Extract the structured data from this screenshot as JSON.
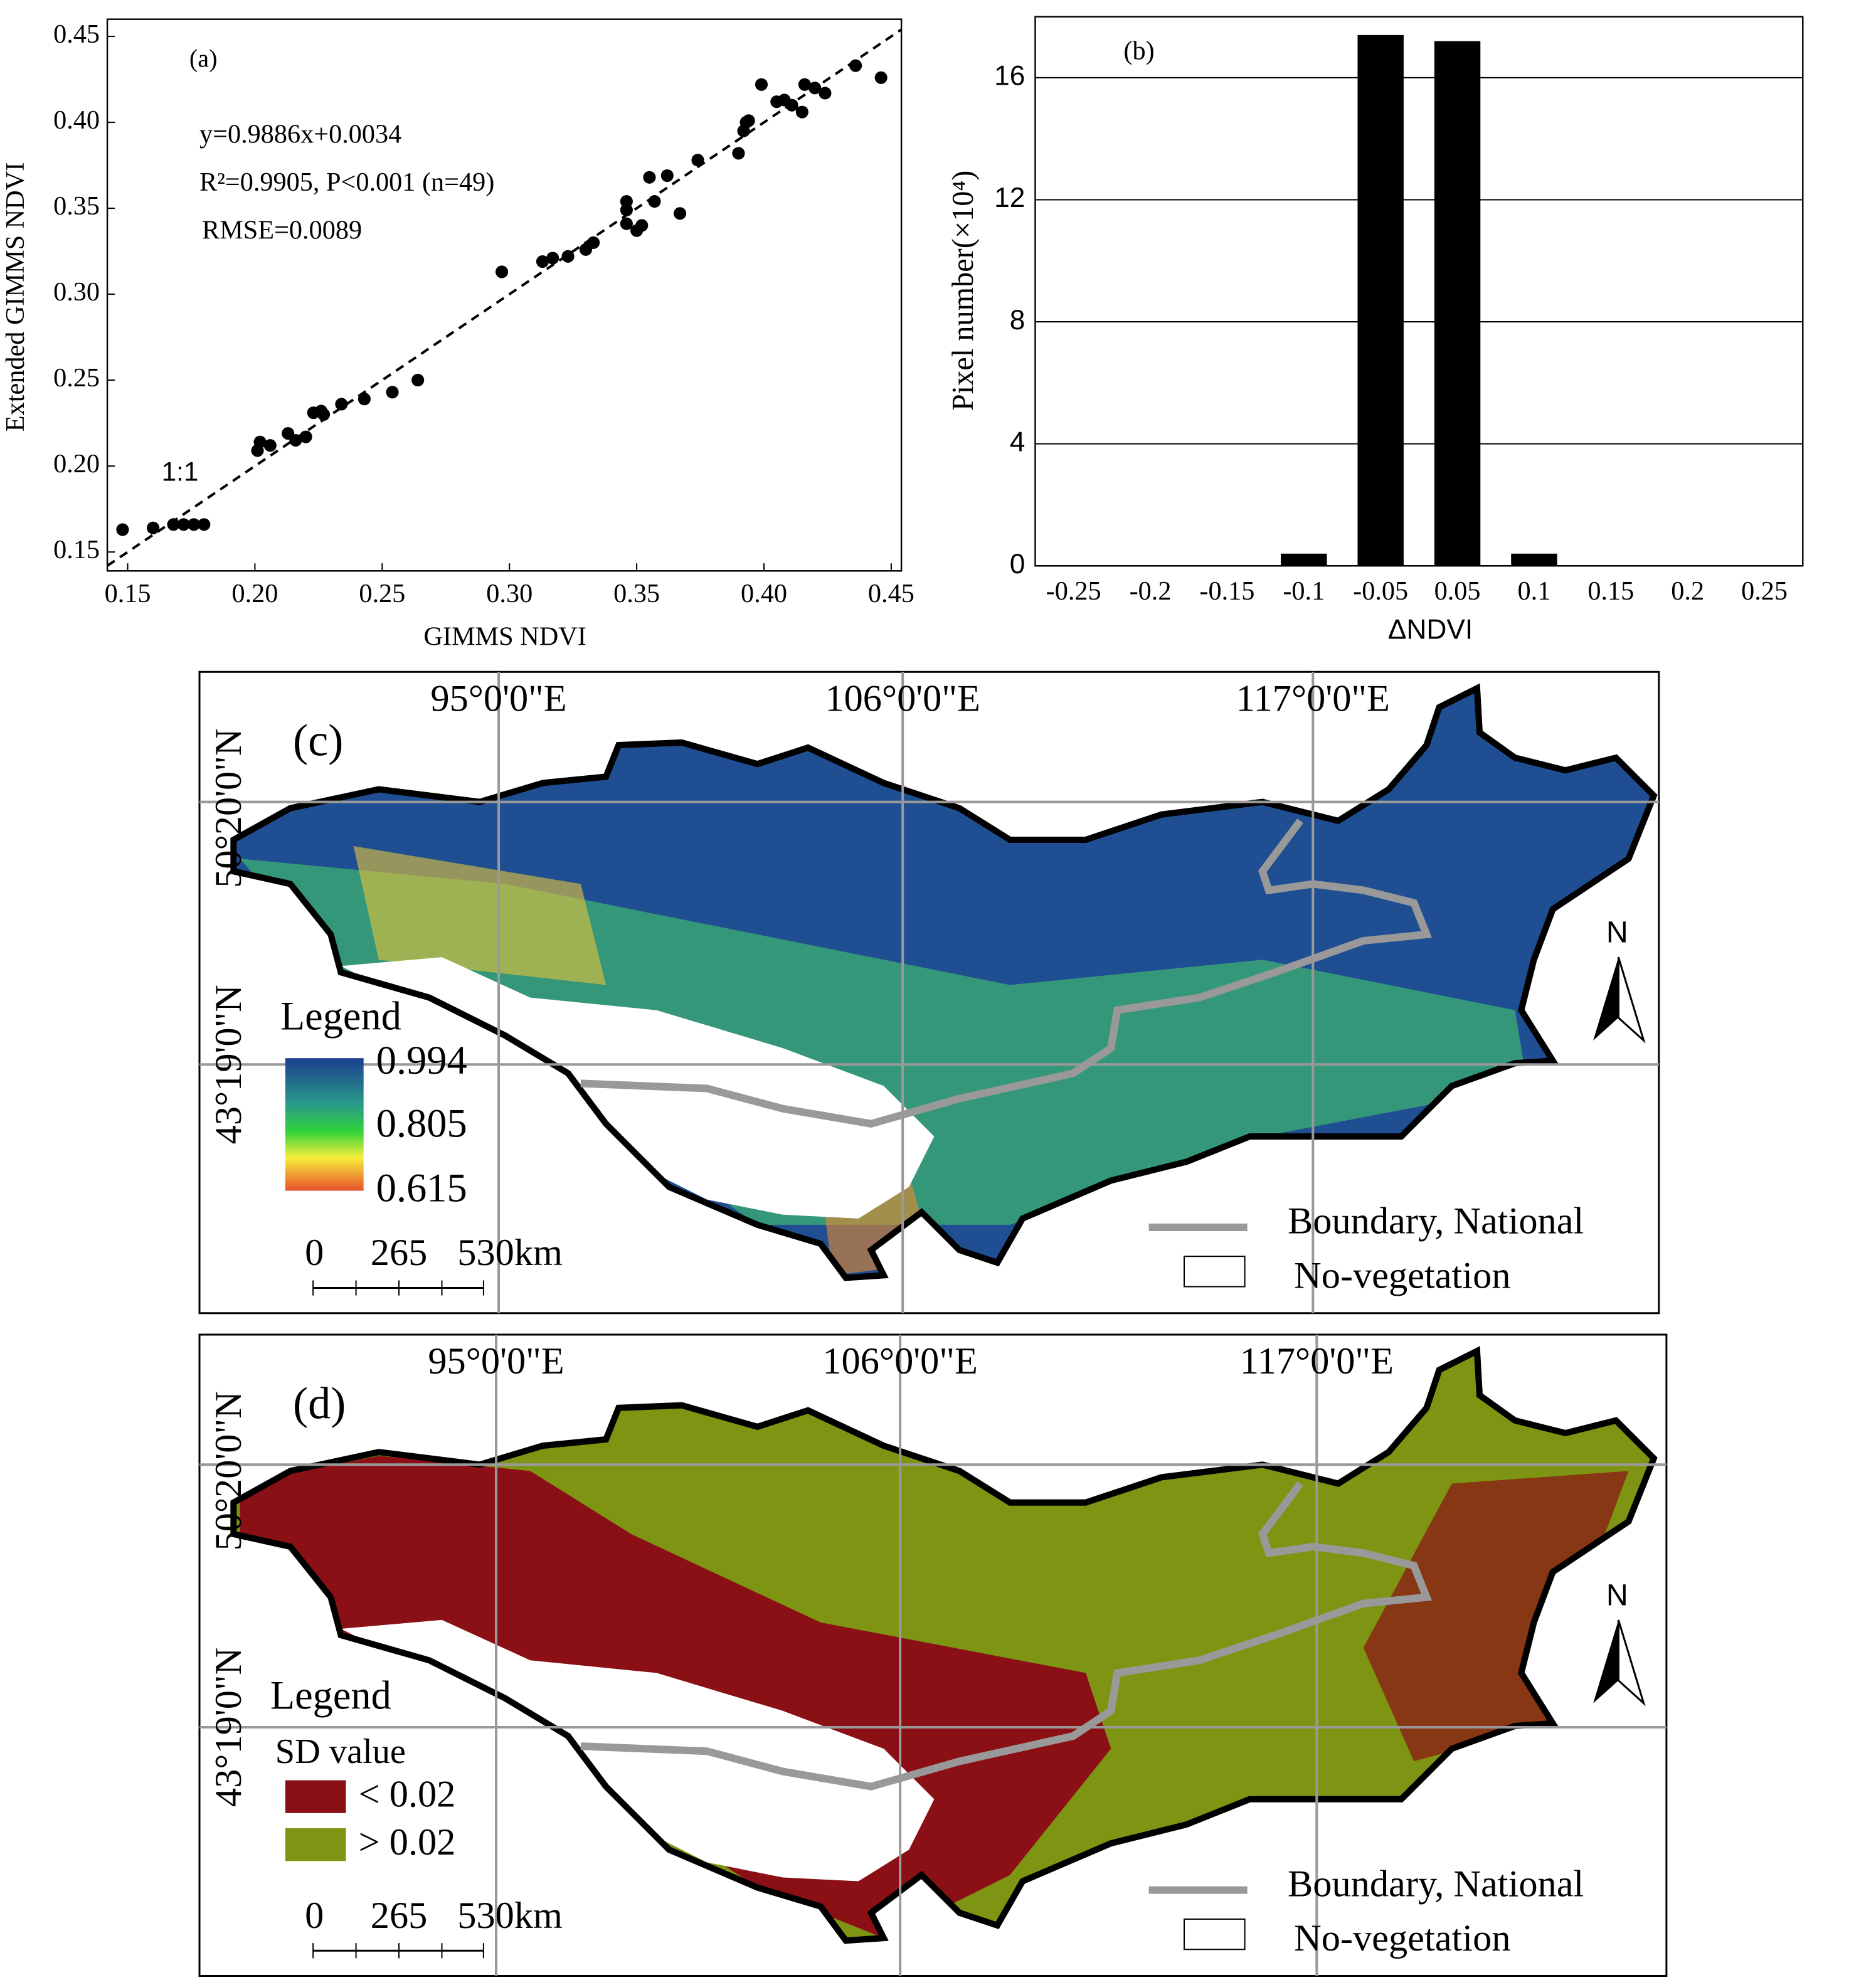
{
  "chart_data": [
    {
      "type": "scatter",
      "title": "(a)",
      "x_label": "GIMMS NDVI",
      "y_label": "Extended GIMMS NDVI",
      "annotations": [
        "y=0.9886x+0.0034",
        "R²=0.9905, P<0.001 (n=49)",
        "RMSE=0.0089",
        "1:1"
      ],
      "color": "#000000",
      "x": [
        0.148,
        0.16,
        0.168,
        0.172,
        0.176,
        0.18,
        0.201,
        0.202,
        0.213,
        0.216,
        0.22,
        0.223,
        0.226,
        0.234,
        0.243,
        0.254,
        0.264,
        0.297,
        0.313,
        0.317,
        0.33,
        0.333,
        0.346,
        0.346,
        0.346,
        0.352,
        0.355,
        0.357,
        0.362,
        0.367,
        0.374,
        0.39,
        0.392,
        0.393,
        0.394,
        0.399,
        0.408,
        0.411,
        0.415,
        0.416,
        0.42,
        0.424,
        0.436,
        0.446,
        0.405,
        0.35,
        0.323,
        0.227,
        0.206
      ],
      "values": [
        0.163,
        0.164,
        0.166,
        0.166,
        0.166,
        0.166,
        0.209,
        0.214,
        0.219,
        0.215,
        0.217,
        0.231,
        0.232,
        0.236,
        0.239,
        0.243,
        0.25,
        0.313,
        0.319,
        0.321,
        0.326,
        0.33,
        0.341,
        0.349,
        0.354,
        0.34,
        0.368,
        0.354,
        0.369,
        0.347,
        0.378,
        0.382,
        0.395,
        0.4,
        0.401,
        0.422,
        0.413,
        0.41,
        0.406,
        0.422,
        0.42,
        0.417,
        0.433,
        0.426,
        0.412,
        0.337,
        0.322,
        0.23,
        0.212
      ],
      "xlim": [
        0.142,
        0.454
      ],
      "ylim": [
        0.139,
        0.46
      ],
      "xticks": [
        0.15,
        {
          "value": 0.2,
          "label": "0.20"
        },
        0.25,
        {
          "value": 0.3,
          "label": "0.30"
        },
        0.35,
        {
          "value": 0.4,
          "label": "0.40"
        },
        0.45
      ],
      "yticks": [
        0.15,
        {
          "value": 0.2,
          "label": "0.20"
        },
        0.25,
        {
          "value": 0.3,
          "label": "0.30"
        },
        0.35,
        {
          "value": 0.4,
          "label": "0.40"
        },
        0.45
      ]
    },
    {
      "type": "bar",
      "title": "(b)",
      "x_label": "ΔNDVI",
      "y_label": "Pixel number(×10⁴)",
      "color": "#000000",
      "grid": true,
      "categories": [
        "-0.25",
        "-0.2",
        "-0.15",
        "-0.1",
        "-0.05",
        "0.05",
        "0.1",
        "0.15",
        "0.2",
        "0.25"
      ],
      "values": [
        0,
        0,
        0,
        0.4,
        17.4,
        17.2,
        0.4,
        0,
        0,
        0
      ],
      "ylim": [
        0,
        18
      ],
      "yticks": [
        0,
        4,
        8,
        12,
        16
      ]
    }
  ],
  "maps": [
    {
      "panel": "(c)",
      "lon_labels": [
        "95°0'0\"E",
        "106°0'0\"E",
        "117°0'0\"E"
      ],
      "lat_labels": [
        "50°20'0\"N",
        "43°19'0\"N"
      ],
      "legend_title": "Legend",
      "legend_labels": [
        "0.994",
        "0.805",
        "0.615"
      ],
      "scale_labels": [
        "0",
        "265",
        "530km"
      ],
      "north": "N",
      "boundary": "Boundary, National",
      "no_vegetation": "No-vegetation"
    },
    {
      "panel": "(d)",
      "lon_labels": [
        "95°0'0\"E",
        "106°0'0\"E",
        "117°0'0\"E"
      ],
      "lat_labels": [
        "50°20'0\"N",
        "43°19'0\"N"
      ],
      "legend_title": "Legend",
      "legend_subtitle": "SD value",
      "legend_labels": [
        "< 0.02",
        "> 0.02"
      ],
      "scale_labels": [
        "0",
        "265",
        "530km"
      ],
      "north": "N",
      "boundary": "Boundary, National",
      "no_vegetation": "No-vegetation"
    }
  ]
}
